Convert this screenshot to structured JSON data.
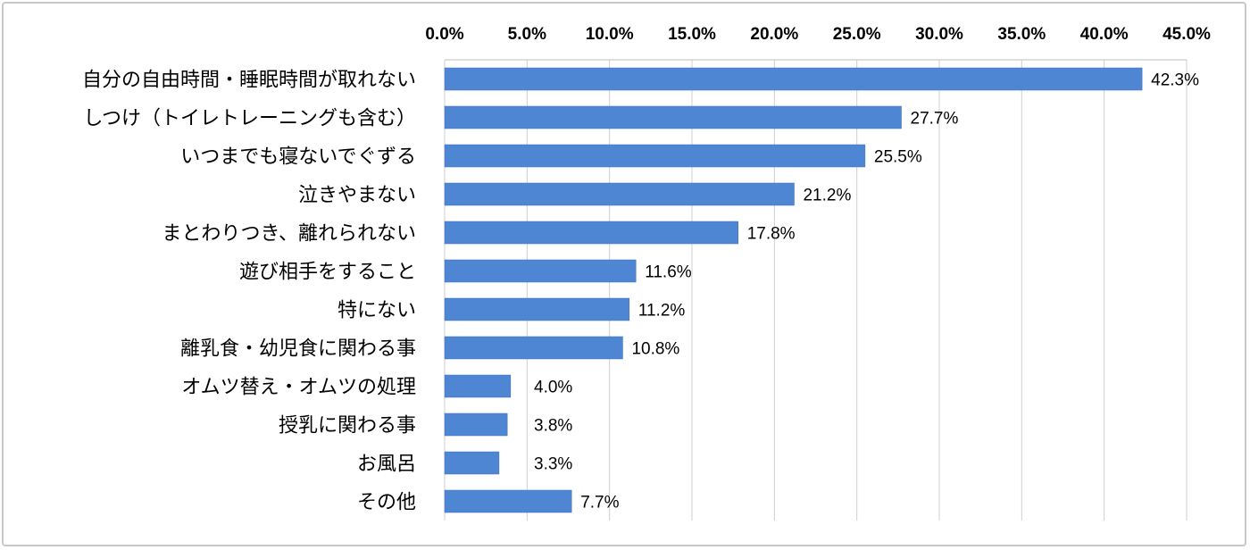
{
  "chart_data": {
    "type": "bar",
    "orientation": "horizontal",
    "categories": [
      "自分の自由時間・睡眠時間が取れない",
      "しつけ（トイレトレーニングも含む）",
      "いつまでも寝ないでぐずる",
      "泣きやまない",
      "まとわりつき、離れられない",
      "遊び相手をすること",
      "特にない",
      "離乳食・幼児食に関わる事",
      "オムツ替え・オムツの処理",
      "授乳に関わる事",
      "お風呂",
      "その他"
    ],
    "values": [
      42.3,
      27.7,
      25.5,
      21.2,
      17.8,
      11.6,
      11.2,
      10.8,
      4.0,
      3.8,
      3.3,
      7.7
    ],
    "data_labels": [
      "42.3%",
      "27.7%",
      "25.5%",
      "21.2%",
      "17.8%",
      "11.6%",
      "11.2%",
      "10.8%",
      "4.0%",
      "3.8%",
      "3.3%",
      "7.7%"
    ],
    "xlim": [
      0,
      45
    ],
    "x_ticks": [
      "0.0%",
      "5.0%",
      "10.0%",
      "15.0%",
      "20.0%",
      "25.0%",
      "30.0%",
      "35.0%",
      "40.0%",
      "45.0%"
    ],
    "grid": true,
    "axis_position": "top",
    "bar_color": "#4f86d4",
    "grid_color": "#cfcfcf",
    "title": "",
    "xlabel": "",
    "ylabel": ""
  }
}
